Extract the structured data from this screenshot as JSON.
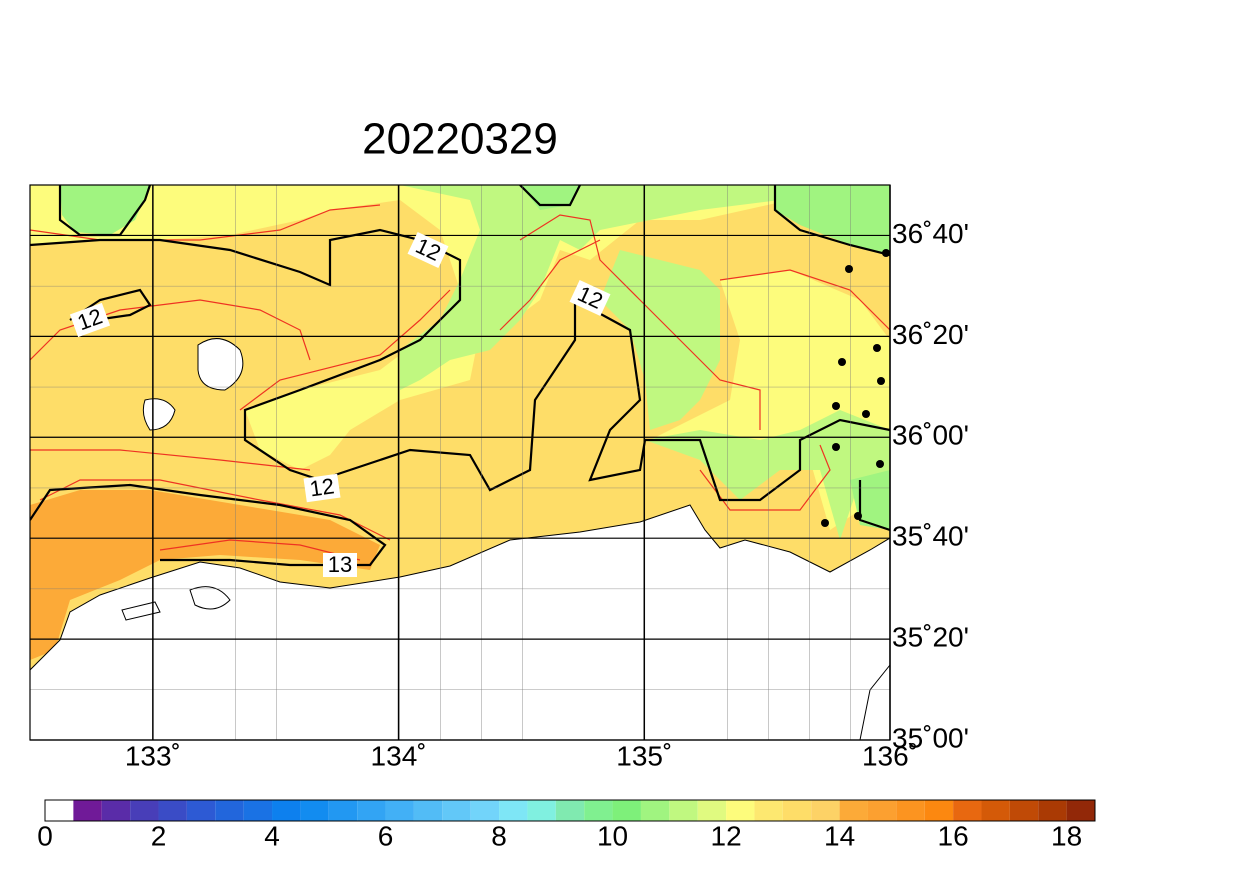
{
  "title": "20220329",
  "map": {
    "lonlim": [
      132.5,
      136
    ],
    "latlim": [
      35,
      36.8333
    ],
    "lon_ticks": [
      {
        "value": 133,
        "label": "133˚"
      },
      {
        "value": 134,
        "label": "134˚"
      },
      {
        "value": 135,
        "label": "135˚"
      },
      {
        "value": 136,
        "label": "136˚"
      }
    ],
    "lat_ticks": [
      {
        "value": 36.6667,
        "label": "36˚40'"
      },
      {
        "value": 36.3333,
        "label": "36˚20'"
      },
      {
        "value": 36,
        "label": "36˚00'"
      },
      {
        "value": 35.6667,
        "label": "35˚40'"
      },
      {
        "value": 35.3333,
        "label": "35˚20'"
      },
      {
        "value": 35,
        "label": "35˚00'"
      }
    ],
    "contour_labels": [
      "12",
      "12",
      "12",
      "12",
      "13"
    ]
  },
  "colorbar": {
    "lim": [
      0,
      18.5
    ],
    "ticks": [
      0,
      2,
      4,
      6,
      8,
      10,
      12,
      14,
      16,
      18
    ],
    "colors": [
      "#ffffff",
      "#701a98",
      "#5a2ca8",
      "#483eb8",
      "#3a4cc6",
      "#2d5ad4",
      "#2266dc",
      "#1a72e4",
      "#0d80ee",
      "#128cf0",
      "#2298f2",
      "#32a4f4",
      "#42b0f6",
      "#52bcf6",
      "#62c8f8",
      "#72d4fa",
      "#7ee6f6",
      "#80f0e0",
      "#80eab0",
      "#80f090",
      "#7ef07a",
      "#a0f480",
      "#c0f880",
      "#e0fa80",
      "#fdfc7c",
      "#fde870",
      "#fedd68",
      "#fdd266",
      "#fcaa38",
      "#fca030",
      "#fc9420",
      "#fc8810",
      "#e86810",
      "#d45a08",
      "#c04a06",
      "#aa3a04",
      "#922808"
    ]
  }
}
